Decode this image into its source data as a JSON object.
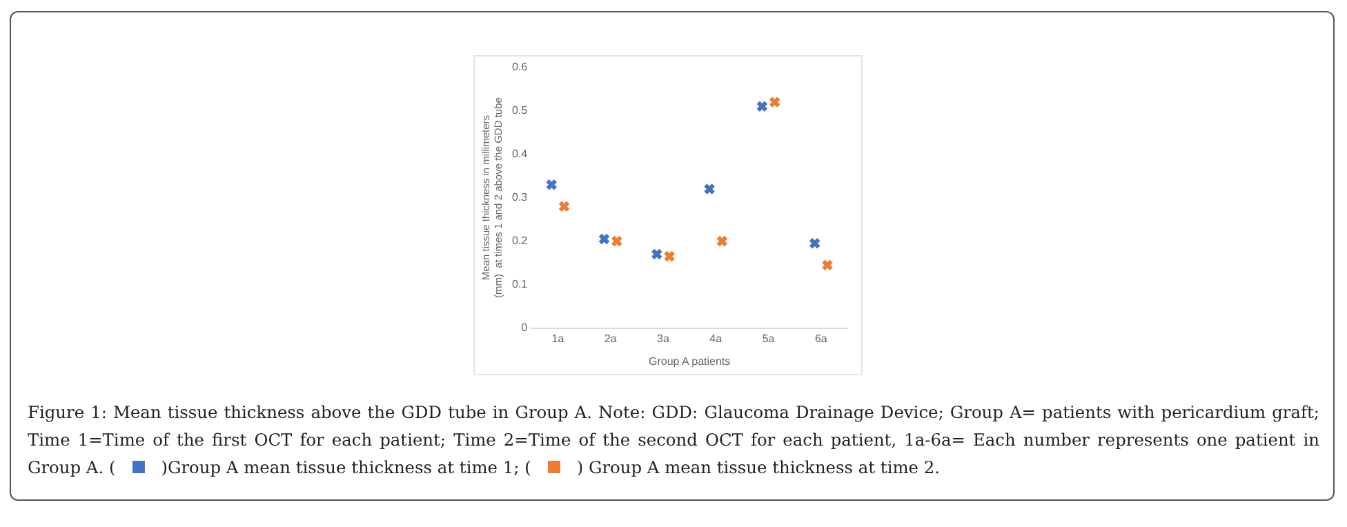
{
  "chart_data": {
    "type": "scatter",
    "xlabel": "Group A patients",
    "ylabel": "Mean tissue thickness in millimeters (mm)  at times 1 and 2 above the GDD tube",
    "categories": [
      "1a",
      "2a",
      "3a",
      "4a",
      "5a",
      "6a"
    ],
    "series": [
      {
        "color": "#4472c4",
        "values": [
          0.33,
          0.205,
          0.17,
          0.32,
          0.51,
          0.195
        ]
      },
      {
        "color": "#ed7d31",
        "values": [
          0.28,
          0.2,
          0.165,
          0.2,
          0.52,
          0.145
        ]
      }
    ],
    "ylim": [
      0,
      0.6
    ],
    "yticks": [
      0,
      0.1,
      0.2,
      0.3,
      0.4,
      0.5,
      0.6
    ],
    "grid": false,
    "marker": "cross",
    "annotations": [
      "Figure 1: Mean tissue thickness above the GDD tube in Group A. Note: GDD: Glaucoma Drainage Device; Group A= patients with pericardium graft; Time 1=Time of the first OCT for each patient; Time 2=Time of the second OCT for each patient, 1a-6a= Each number represents one patient in Group A. (",
      ")Group A mean tissue thickness at time 1; (",
      ") Group A mean tissue thickness at time 2."
    ]
  }
}
